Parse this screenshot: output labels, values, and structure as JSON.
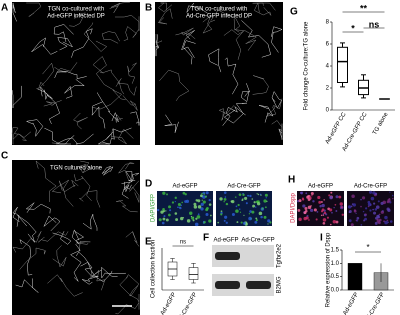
{
  "panels": {
    "a": {
      "letter": "A",
      "title_lines": [
        "TGN co-cultured with",
        "Ad-eGFP infected DP"
      ]
    },
    "b": {
      "letter": "B",
      "title_lines": [
        "TGN co-cultured with",
        "Ad-Cre-GFP infected DP"
      ]
    },
    "c": {
      "letter": "C",
      "title_lines": [
        "TGN cultured alone"
      ]
    },
    "d": {
      "letter": "D",
      "columns": [
        "Ad-eGFP",
        "Ad-Cre-GFP"
      ],
      "stain": "DAPI/GFP"
    },
    "e": {
      "letter": "E",
      "type": "box",
      "ylabel": "Cell collection fraction",
      "categories": [
        "Ad-eGFP",
        "Ad-Cre-GFP"
      ],
      "boxes": [
        {
          "min": 0.55,
          "q1": 0.6,
          "median": 0.7,
          "q3": 0.8,
          "max": 0.85
        },
        {
          "min": 0.5,
          "q1": 0.55,
          "median": 0.62,
          "q3": 0.72,
          "max": 0.78
        }
      ],
      "ylim": [
        0.4,
        1.0
      ],
      "significance": "ns"
    },
    "f": {
      "letter": "F",
      "columns": [
        "Ad-eGFP",
        "Ad-Cre-GFP"
      ],
      "rows": [
        "Tgfbr2e2",
        "B2MG"
      ]
    },
    "g": {
      "letter": "G",
      "type": "box",
      "ylabel": "Fold change Co-culture:TG alone",
      "categories": [
        "Ad-eGFP CC",
        "Ad-Cre-GFP CC",
        "TG alone"
      ],
      "boxes": [
        {
          "min": 2.1,
          "q1": 2.5,
          "median": 4.4,
          "q3": 5.7,
          "max": 6.1
        },
        {
          "min": 1.1,
          "q1": 1.4,
          "median": 2.0,
          "q3": 2.7,
          "max": 3.2
        },
        {
          "min": 1.0,
          "q1": 1.0,
          "median": 1.0,
          "q3": 1.0,
          "max": 1.0
        }
      ],
      "ylim": [
        0,
        8
      ],
      "yticks": [
        0,
        2,
        4,
        6,
        8
      ],
      "comparisons": [
        {
          "pair": [
            0,
            2
          ],
          "label": "**"
        },
        {
          "pair": [
            0,
            1
          ],
          "label": "*"
        },
        {
          "pair": [
            1,
            2
          ],
          "label": "ns"
        }
      ]
    },
    "h": {
      "letter": "H",
      "columns": [
        "Ad-eGFP",
        "Ad-Cre-GFP"
      ],
      "stain": "DAPI/Dspp"
    },
    "i": {
      "letter": "I",
      "type": "bar",
      "ylabel": "Relative expression of Dspp",
      "categories": [
        "Ad-eGFP",
        "Ad-Cre-GFP"
      ],
      "values": [
        1.0,
        0.65
      ],
      "errors": [
        0.0,
        0.35
      ],
      "colors": [
        "#000000",
        "#999999"
      ],
      "ylim": [
        0,
        1.5
      ],
      "yticks": [
        {
          "value": 0,
          "label": "0.0"
        },
        {
          "value": 0.5,
          "label": "0.5"
        },
        {
          "value": 1,
          "label": "1.0"
        },
        {
          "value": 1.5,
          "label": "1.5"
        }
      ],
      "significance": "*"
    }
  }
}
